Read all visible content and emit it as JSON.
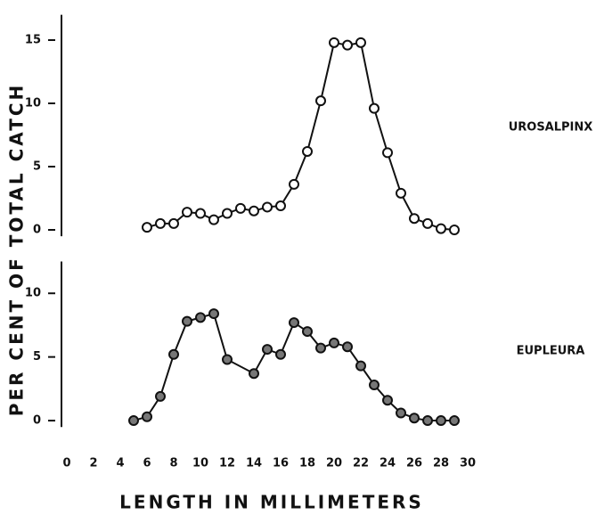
{
  "chart_data": [
    {
      "type": "line",
      "ylabel": "PER CENT OF TOTAL CATCH",
      "xlim": [
        0,
        30
      ],
      "ylim": [
        -0.5,
        17
      ],
      "yticks": [
        0,
        5,
        10,
        15
      ],
      "series": [
        {
          "name": "UROSALPINX",
          "color": "#111111",
          "marker_fill": "#ffffff",
          "x": [
            6,
            7,
            8,
            9,
            10,
            11,
            12,
            13,
            14,
            15,
            16,
            17,
            18,
            19,
            20,
            21,
            22,
            23,
            24,
            25,
            26,
            27,
            28,
            29
          ],
          "values": [
            0.2,
            0.5,
            0.5,
            1.4,
            1.3,
            0.8,
            1.3,
            1.7,
            1.5,
            1.8,
            1.9,
            3.6,
            6.2,
            10.2,
            14.8,
            14.6,
            14.8,
            9.6,
            6.1,
            2.9,
            0.9,
            0.5,
            0.1,
            0.0
          ]
        }
      ]
    },
    {
      "type": "line",
      "xlabel": "LENGTH IN MILLIMETERS",
      "xlim": [
        0,
        30
      ],
      "xticks": [
        0,
        2,
        4,
        6,
        8,
        10,
        12,
        14,
        16,
        18,
        20,
        22,
        24,
        26,
        28,
        30
      ],
      "ylim": [
        -0.5,
        12.5
      ],
      "yticks": [
        0,
        5,
        10
      ],
      "series": [
        {
          "name": "EUPLEURA",
          "color": "#111111",
          "marker_fill": "#777777",
          "x": [
            5,
            6,
            7,
            8,
            9,
            10,
            11,
            12,
            14,
            15,
            16,
            17,
            18,
            19,
            20,
            21,
            22,
            23,
            24,
            25,
            26,
            27,
            28,
            29
          ],
          "values": [
            0.0,
            0.3,
            1.9,
            5.2,
            7.8,
            8.1,
            8.4,
            4.8,
            3.7,
            5.6,
            5.2,
            7.7,
            7.0,
            5.7,
            6.1,
            5.8,
            4.3,
            2.8,
            1.6,
            0.6,
            0.2,
            0.0,
            0.0,
            0.0
          ]
        }
      ]
    }
  ]
}
